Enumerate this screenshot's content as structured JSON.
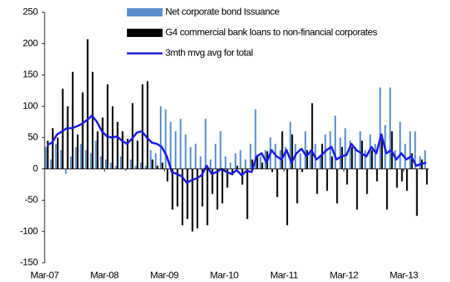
{
  "chart_data": {
    "type": "bar_line",
    "categories": [
      "Mar-07",
      null,
      null,
      null,
      null,
      null,
      null,
      null,
      null,
      null,
      null,
      null,
      "Mar-08",
      null,
      null,
      null,
      null,
      null,
      null,
      null,
      null,
      null,
      null,
      null,
      "Mar-09",
      null,
      null,
      null,
      null,
      null,
      null,
      null,
      null,
      null,
      null,
      null,
      "Mar-10",
      null,
      null,
      null,
      null,
      null,
      null,
      null,
      null,
      null,
      null,
      null,
      "Mar-11",
      null,
      null,
      null,
      null,
      null,
      null,
      null,
      null,
      null,
      null,
      null,
      "Mar-12",
      null,
      null,
      null,
      null,
      null,
      null,
      null,
      null,
      null,
      null,
      null,
      "Mar-13",
      null,
      null,
      null,
      null
    ],
    "series": [
      {
        "name": "Net corporate bond Issuance",
        "color": "#5b8fcf",
        "kind": "bar",
        "values": [
          35,
          15,
          40,
          30,
          -8,
          20,
          35,
          40,
          30,
          25,
          45,
          20,
          15,
          10,
          5,
          20,
          -3,
          15,
          5,
          10,
          5,
          30,
          25,
          100,
          95,
          75,
          60,
          80,
          55,
          35,
          40,
          20,
          80,
          15,
          40,
          60,
          20,
          10,
          25,
          30,
          15,
          40,
          95,
          20,
          30,
          50,
          40,
          30,
          35,
          75,
          40,
          25,
          60,
          30,
          40,
          20,
          55,
          60,
          85,
          50,
          65,
          45,
          35,
          60,
          30,
          55,
          40,
          130,
          70,
          130,
          30,
          75,
          40,
          60,
          60,
          20,
          30
        ]
      },
      {
        "name": "G4 commercial bank loans to non-financial corporates",
        "color": "#000000",
        "kind": "bar",
        "values": [
          45,
          65,
          50,
          128,
          100,
          155,
          55,
          122,
          207,
          155,
          60,
          82,
          135,
          100,
          75,
          60,
          48,
          105,
          45,
          135,
          140,
          15,
          5,
          10,
          -20,
          -65,
          -60,
          -90,
          -80,
          -100,
          -95,
          -60,
          -90,
          -40,
          -65,
          -55,
          -30,
          -10,
          5,
          -25,
          -80,
          15,
          20,
          10,
          28,
          -5,
          -45,
          60,
          -90,
          55,
          -55,
          -5,
          30,
          105,
          -40,
          40,
          -35,
          20,
          -55,
          35,
          -25,
          35,
          -65,
          45,
          -40,
          30,
          -20,
          55,
          -65,
          60,
          -30,
          -20,
          -35,
          25,
          -75,
          15,
          -25
        ]
      },
      {
        "name": "3mth mvg avg for total",
        "color": "#1a1ae6",
        "kind": "line",
        "values": [
          38,
          42,
          55,
          60,
          65,
          65,
          68,
          72,
          78,
          85,
          75,
          60,
          52,
          50,
          52,
          45,
          40,
          48,
          58,
          60,
          50,
          42,
          40,
          35,
          20,
          -5,
          -8,
          -12,
          -22,
          -18,
          -15,
          -10,
          5,
          -8,
          -5,
          0,
          -5,
          -8,
          -2,
          -10,
          -3,
          -5,
          20,
          25,
          10,
          30,
          20,
          15,
          30,
          10,
          25,
          32,
          20,
          30,
          15,
          22,
          30,
          35,
          15,
          20,
          22,
          40,
          30,
          25,
          20,
          35,
          25,
          55,
          25,
          30,
          15,
          25,
          15,
          20,
          5,
          8,
          10
        ]
      }
    ],
    "ylim": [
      -150,
      250
    ],
    "yticks": [
      -150,
      -100,
      -50,
      0,
      50,
      100,
      150,
      200,
      250
    ]
  }
}
